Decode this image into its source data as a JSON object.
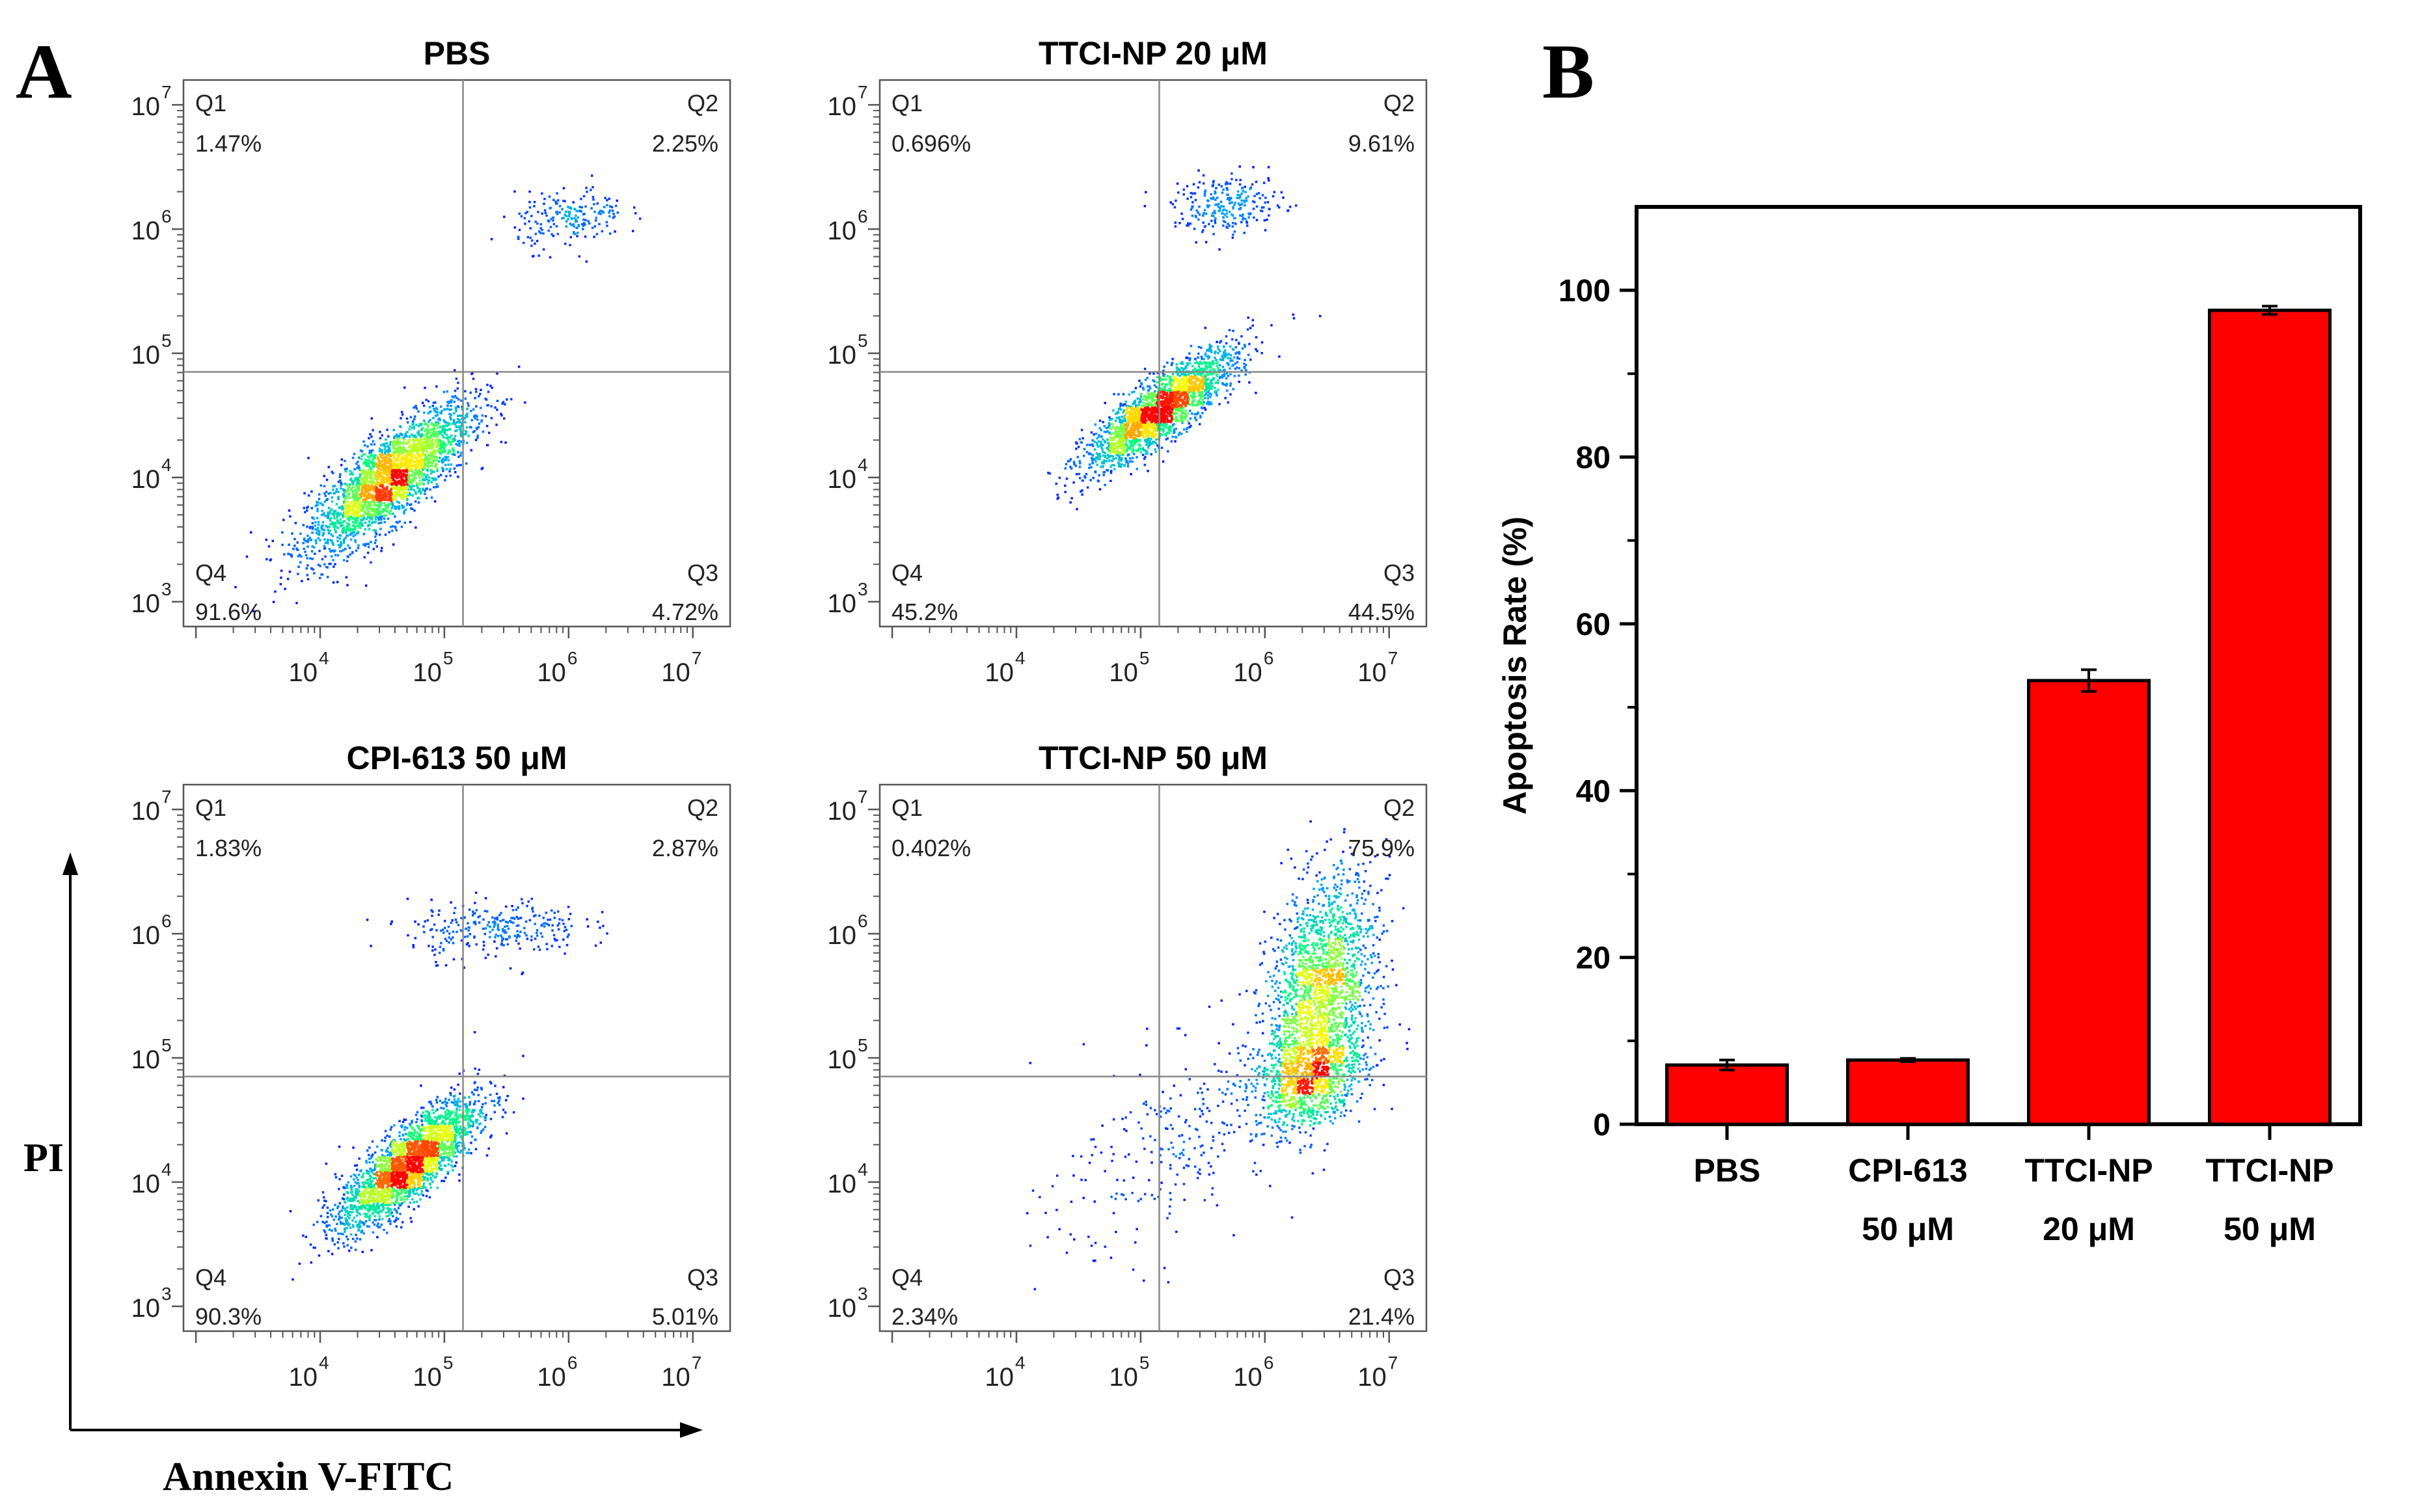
{
  "panels": {
    "a_label": "A",
    "b_label": "B",
    "flow_y_axis_label": "PI",
    "flow_x_axis_label": "Annexin V-FITC"
  },
  "colors": {
    "bar_fill": "#ff0000",
    "gate_line": "#888888",
    "density_scale": [
      "#0000ff",
      "#00a0ff",
      "#00ff80",
      "#ffff00",
      "#ff0000"
    ]
  },
  "chart_data": [
    {
      "type": "scatter",
      "subtype": "flow-cytometry-dot-plot",
      "title": "PBS",
      "x_ticks": [
        "10",
        "10",
        "10",
        "10"
      ],
      "x_tick_exponents": [
        "4",
        "5",
        "6",
        "7"
      ],
      "y_ticks": [
        "10",
        "10",
        "10",
        "10",
        "10"
      ],
      "y_tick_exponents": [
        "3",
        "4",
        "5",
        "6",
        "7"
      ],
      "xlim_log10": [
        2.9,
        7.3
      ],
      "ylim_log10": [
        2.8,
        7.2
      ],
      "gate": {
        "x_log10": 5.15,
        "y_log10": 4.85
      },
      "quadrants": [
        {
          "name": "Q1",
          "value": "1.47%"
        },
        {
          "name": "Q2",
          "value": "2.25%"
        },
        {
          "name": "Q3",
          "value": "4.72%"
        },
        {
          "name": "Q4",
          "value": "91.6%"
        }
      ],
      "clusters": [
        {
          "cx": 4.55,
          "cy": 4.0,
          "sx": 0.33,
          "sy": 0.3,
          "rho": 0.8,
          "n": 2600
        },
        {
          "cx": 6.0,
          "cy": 6.1,
          "sx": 0.22,
          "sy": 0.12,
          "rho": 0.2,
          "n": 200
        }
      ]
    },
    {
      "type": "scatter",
      "subtype": "flow-cytometry-dot-plot",
      "title": "TTCI-NP 20 μM",
      "x_ticks": [
        "10",
        "10",
        "10",
        "10"
      ],
      "x_tick_exponents": [
        "4",
        "5",
        "6",
        "7"
      ],
      "y_ticks": [
        "10",
        "10",
        "10",
        "10",
        "10"
      ],
      "y_tick_exponents": [
        "3",
        "4",
        "5",
        "6",
        "7"
      ],
      "xlim_log10": [
        2.9,
        7.3
      ],
      "ylim_log10": [
        2.8,
        7.2
      ],
      "gate": {
        "x_log10": 5.15,
        "y_log10": 4.85
      },
      "quadrants": [
        {
          "name": "Q1",
          "value": "0.696%"
        },
        {
          "name": "Q2",
          "value": "9.61%"
        },
        {
          "name": "Q3",
          "value": "44.5%"
        },
        {
          "name": "Q4",
          "value": "45.2%"
        }
      ],
      "clusters": [
        {
          "cx": 5.15,
          "cy": 4.55,
          "sx": 0.3,
          "sy": 0.24,
          "rho": 0.85,
          "n": 2200
        },
        {
          "cx": 5.7,
          "cy": 6.2,
          "sx": 0.22,
          "sy": 0.12,
          "rho": 0.1,
          "n": 250
        }
      ]
    },
    {
      "type": "scatter",
      "subtype": "flow-cytometry-dot-plot",
      "title": "CPI-613 50 μM",
      "x_ticks": [
        "10",
        "10",
        "10",
        "10"
      ],
      "x_tick_exponents": [
        "4",
        "5",
        "6",
        "7"
      ],
      "y_ticks": [
        "10",
        "10",
        "10",
        "10",
        "10"
      ],
      "y_tick_exponents": [
        "3",
        "4",
        "5",
        "6",
        "7"
      ],
      "xlim_log10": [
        2.9,
        7.3
      ],
      "ylim_log10": [
        2.8,
        7.2
      ],
      "gate": {
        "x_log10": 5.15,
        "y_log10": 4.85
      },
      "quadrants": [
        {
          "name": "Q1",
          "value": "1.83%"
        },
        {
          "name": "Q2",
          "value": "2.87%"
        },
        {
          "name": "Q3",
          "value": "5.01%"
        },
        {
          "name": "Q4",
          "value": "90.3%"
        }
      ],
      "clusters": [
        {
          "cx": 4.7,
          "cy": 4.15,
          "sx": 0.28,
          "sy": 0.26,
          "rho": 0.8,
          "n": 2500
        },
        {
          "cx": 5.4,
          "cy": 6.05,
          "sx": 0.35,
          "sy": 0.12,
          "rho": 0.1,
          "n": 280
        }
      ]
    },
    {
      "type": "scatter",
      "subtype": "flow-cytometry-dot-plot",
      "title": "TTCI-NP 50 μM",
      "x_ticks": [
        "10",
        "10",
        "10",
        "10"
      ],
      "x_tick_exponents": [
        "4",
        "5",
        "6",
        "7"
      ],
      "y_ticks": [
        "10",
        "10",
        "10",
        "10",
        "10"
      ],
      "y_tick_exponents": [
        "3",
        "4",
        "5",
        "6",
        "7"
      ],
      "xlim_log10": [
        2.9,
        7.3
      ],
      "ylim_log10": [
        2.8,
        7.2
      ],
      "gate": {
        "x_log10": 5.15,
        "y_log10": 4.85
      },
      "quadrants": [
        {
          "name": "Q1",
          "value": "0.402%"
        },
        {
          "name": "Q2",
          "value": "75.9%"
        },
        {
          "name": "Q3",
          "value": "21.4%"
        },
        {
          "name": "Q4",
          "value": "2.34%"
        }
      ],
      "clusters": [
        {
          "cx": 6.45,
          "cy": 5.55,
          "sx": 0.22,
          "sy": 0.45,
          "rho": 0.3,
          "n": 1800
        },
        {
          "cx": 6.35,
          "cy": 4.85,
          "sx": 0.22,
          "sy": 0.2,
          "rho": 0.3,
          "n": 900
        },
        {
          "cx": 5.4,
          "cy": 4.4,
          "sx": 0.55,
          "sy": 0.5,
          "rho": 0.6,
          "n": 300
        }
      ]
    },
    {
      "type": "bar",
      "categories": [
        "PBS",
        "CPI-613",
        "TTCI-NP",
        "TTCI-NP"
      ],
      "category_sublabels": [
        "",
        "50 μM",
        "20 μM",
        "50 μM"
      ],
      "values": [
        7.1,
        7.7,
        53.2,
        97.6
      ],
      "errors": [
        0.6,
        0.2,
        1.3,
        0.5
      ],
      "ylabel": "Apoptosis Rate (%)",
      "xlabel": "",
      "ylim": [
        0,
        110
      ],
      "yticks": [
        "0",
        "20",
        "40",
        "60",
        "80",
        "100"
      ],
      "ytick_values": [
        0,
        20,
        40,
        60,
        80,
        100
      ]
    }
  ]
}
